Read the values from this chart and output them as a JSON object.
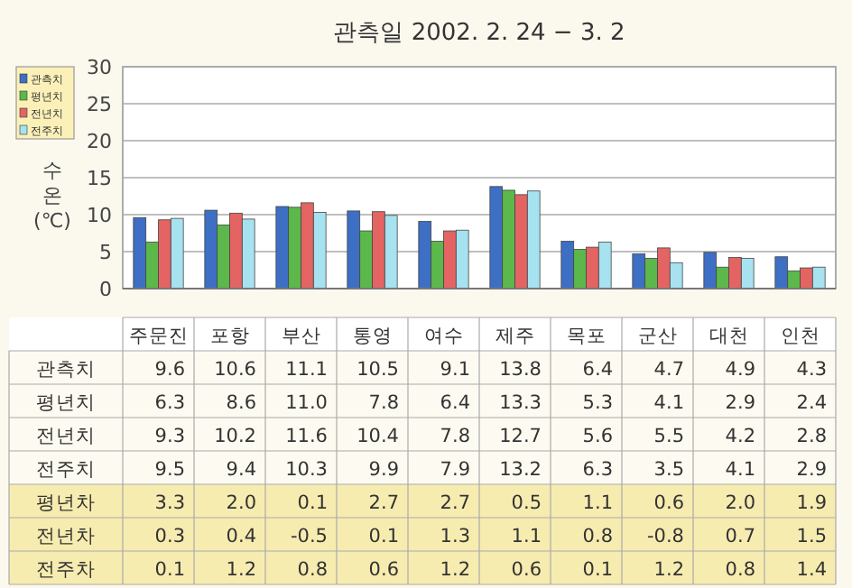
{
  "chart_data": {
    "type": "bar",
    "title": "관측일 2002. 2. 24 − 3. 2",
    "ylabel": "수온(℃)",
    "categories": [
      "주문진",
      "포항",
      "부산",
      "통영",
      "여수",
      "제주",
      "목포",
      "군산",
      "대천",
      "인천"
    ],
    "series": [
      {
        "name": "관측치",
        "color": "#3d6fc4",
        "values": [
          9.6,
          10.6,
          11.1,
          10.5,
          9.1,
          13.8,
          6.4,
          4.7,
          4.9,
          4.3
        ],
        "value_labels": [
          "9.6",
          "10.6",
          "11.1",
          "10.5",
          "9.1",
          "13.8",
          "6.4",
          "4.7",
          "4.9",
          "4.3"
        ]
      },
      {
        "name": "평년치",
        "color": "#5cb84a",
        "values": [
          6.3,
          8.6,
          11.0,
          7.8,
          6.4,
          13.3,
          5.3,
          4.1,
          2.9,
          2.4
        ],
        "value_labels": [
          "6.3",
          "8.6",
          "11.0",
          "7.8",
          "6.4",
          "13.3",
          "5.3",
          "4.1",
          "2.9",
          "2.4"
        ]
      },
      {
        "name": "전년치",
        "color": "#e46464",
        "values": [
          9.3,
          10.2,
          11.6,
          10.4,
          7.8,
          12.7,
          5.6,
          5.5,
          4.2,
          2.8
        ],
        "value_labels": [
          "9.3",
          "10.2",
          "11.6",
          "10.4",
          "7.8",
          "12.7",
          "5.6",
          "5.5",
          "4.2",
          "2.8"
        ]
      },
      {
        "name": "전주치",
        "color": "#a6e2f0",
        "values": [
          9.5,
          9.4,
          10.3,
          9.9,
          7.9,
          13.2,
          6.3,
          3.5,
          4.1,
          2.9
        ],
        "value_labels": [
          "9.5",
          "9.4",
          "10.3",
          "9.9",
          "7.9",
          "13.2",
          "6.3",
          "3.5",
          "4.1",
          "2.9"
        ]
      }
    ],
    "ylim": [
      0,
      30
    ],
    "yticks": [
      0,
      5,
      10,
      15,
      20,
      25,
      30
    ],
    "grid": "y",
    "legend": "left",
    "annotations": [
      "평년차",
      "3.3",
      "2.0",
      "0.1",
      "2.7",
      "2.7",
      "0.5",
      "1.1",
      "0.6",
      "2.0",
      "1.9",
      "전년차",
      "0.3",
      "0.4",
      "-0.5",
      "0.1",
      "1.3",
      "1.1",
      "0.8",
      "-0.8",
      "0.7",
      "1.5",
      "전주차",
      "0.1",
      "1.2",
      "0.8",
      "0.6",
      "1.2",
      "0.6",
      "0.1",
      "1.2",
      "0.8",
      "1.4"
    ]
  }
}
